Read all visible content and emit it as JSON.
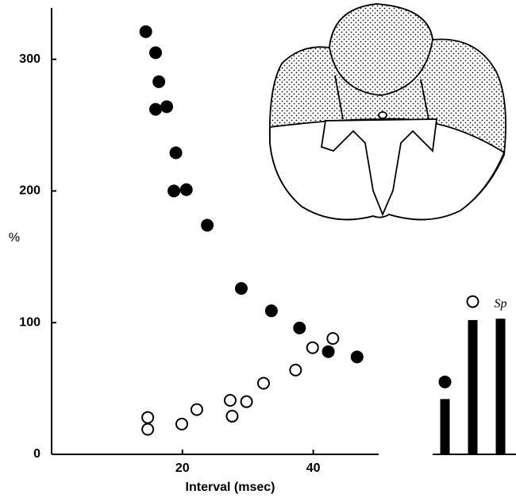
{
  "chart_data": [
    {
      "type": "scatter",
      "y_label": "%",
      "x_label": "Interval (msec)",
      "xlim": [
        0,
        50
      ],
      "ylim": [
        0,
        339
      ],
      "xticks": [
        20,
        40
      ],
      "yticks": [
        0,
        100,
        200,
        300
      ],
      "series": [
        {
          "color": "#000000",
          "marker": "filled",
          "x": [
            14.4,
            15.9,
            16.4,
            15.9,
            17.6,
            19.0,
            18.7,
            20.6,
            23.8,
            29.0,
            33.6,
            37.9,
            42.3,
            46.7
          ],
          "values": [
            321,
            305,
            283,
            262,
            264,
            229,
            200,
            201,
            174,
            126,
            109,
            96,
            78,
            74
          ]
        },
        {
          "color": "#000000",
          "marker": "open",
          "x": [
            14.7,
            14.7,
            19.9,
            22.2,
            27.3,
            27.6,
            29.8,
            32.4,
            37.3,
            39.9,
            43.0
          ],
          "values": [
            28,
            19,
            23,
            34,
            41,
            29,
            40,
            54,
            64,
            81,
            88
          ]
        }
      ]
    },
    {
      "type": "bar",
      "annotation": "Sp",
      "ylim": [
        0,
        339
      ],
      "series": [
        {
          "color": "#000000",
          "marker": "bar",
          "values": [
            42,
            102,
            103
          ]
        },
        {
          "color": "#000000",
          "marker": "filled",
          "values": [
            55,
            null,
            null
          ]
        },
        {
          "color": "#000000",
          "marker": "open",
          "values": [
            null,
            116,
            null
          ]
        }
      ]
    }
  ]
}
